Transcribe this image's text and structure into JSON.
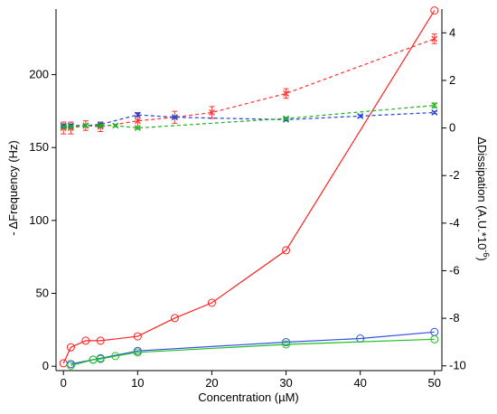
{
  "chart_data": {
    "type": "line",
    "xlabel": "Concentration (µM)",
    "ylabel_left": "- ΔFrequency (Hz)",
    "ylabel_right_main": "ΔDissipation (A.U.*10",
    "ylabel_right_sup": "-6",
    "ylabel_right_close": ")",
    "x_range": [
      -1,
      51
    ],
    "y_left_range": [
      -3,
      245
    ],
    "y_right_range": [
      -10.2,
      5.0
    ],
    "x_ticks": [
      0,
      10,
      20,
      30,
      40,
      50
    ],
    "y_left_ticks": [
      0,
      50,
      100,
      150,
      200
    ],
    "y_right_ticks": [
      -10,
      -8,
      -6,
      -4,
      -2,
      0,
      2,
      4
    ],
    "series": [
      {
        "axis": "left",
        "style": "solid",
        "marker": "circle",
        "color": "#ff2020",
        "x": [
          0,
          1,
          3,
          5,
          10,
          15,
          20,
          30,
          50
        ],
        "y": [
          2,
          13,
          17.5,
          17.5,
          20.5,
          33,
          43.5,
          79.5,
          244
        ]
      },
      {
        "axis": "left",
        "style": "solid",
        "marker": "circle",
        "color": "#3050e0",
        "x": [
          1,
          4,
          5,
          10,
          30,
          40,
          50
        ],
        "y": [
          1.5,
          4.5,
          5.5,
          10.5,
          16.5,
          19,
          23.5
        ]
      },
      {
        "axis": "left",
        "style": "solid",
        "marker": "circle",
        "color": "#20c020",
        "x": [
          1,
          4,
          5,
          7,
          10,
          30,
          50
        ],
        "y": [
          0.5,
          4.5,
          5,
          7,
          9.5,
          15,
          18.5
        ]
      },
      {
        "axis": "right",
        "style": "dashed",
        "marker": "x",
        "color": "#ff3030",
        "x": [
          0,
          1,
          3,
          5,
          10,
          15,
          20,
          30,
          50
        ],
        "y": [
          0,
          0,
          0.1,
          0.05,
          0.3,
          0.45,
          0.65,
          1.45,
          3.75
        ],
        "err": [
          0.25,
          0.25,
          0.2,
          0.2,
          0.35,
          0.25,
          0.25,
          0.2,
          0.2
        ]
      },
      {
        "axis": "right",
        "style": "dashed",
        "marker": "x",
        "color": "#2040d0",
        "x": [
          0,
          1,
          3,
          5,
          10,
          15,
          30,
          40,
          50
        ],
        "y": [
          0.1,
          0.1,
          0.1,
          0.15,
          0.55,
          0.45,
          0.35,
          0.5,
          0.65
        ],
        "err": [
          0.05,
          0.05,
          0.05,
          0.05,
          0.07,
          0.05,
          0.05,
          0.05,
          0.05
        ]
      },
      {
        "axis": "right",
        "style": "dashed",
        "marker": "x",
        "color": "#20b020",
        "x": [
          0,
          1,
          3,
          5,
          7,
          10,
          30,
          50
        ],
        "y": [
          0.05,
          0.05,
          0.1,
          0.1,
          0.1,
          0,
          0.4,
          0.95
        ],
        "err": [
          0.05,
          0.05,
          0.05,
          0.05,
          0.05,
          0.05,
          0.05,
          0.1
        ]
      }
    ]
  }
}
